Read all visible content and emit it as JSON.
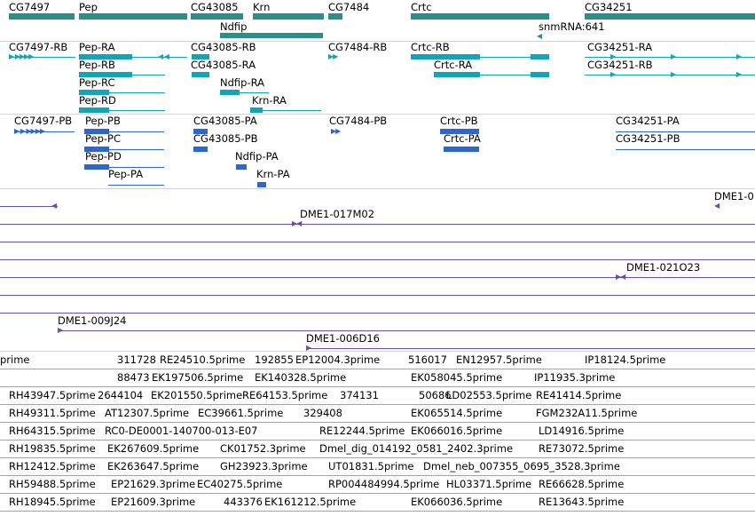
{
  "colors": {
    "gene": "#2a8f8a",
    "transcript_rna": "#14a3b8",
    "transcript_prot": "#2f66cc",
    "bac": "#6a4fa7",
    "est": "#6fb4df",
    "separator": "#d4d4d4"
  },
  "genes": [
    "CG7497",
    "Pep",
    "CG43085",
    "Krn",
    "CG7484",
    "Crtc",
    "CG34251",
    "Ndfip",
    "snmRNA:641"
  ],
  "rna_transcripts": [
    "CG7497-RB",
    "Pep-RA",
    "CG43085-RB",
    "CG7484-RB",
    "Crtc-RB",
    "CG34251-RA",
    "Pep-RB",
    "CG43085-RA",
    "Crtc-RA",
    "CG34251-RB",
    "Pep-RC",
    "Ndfip-RA",
    "Pep-RD",
    "Krn-RA"
  ],
  "protein_transcripts": [
    "CG7497-PB",
    "Pep-PB",
    "CG43085-PA",
    "CG7484-PB",
    "Crtc-PB",
    "CG34251-PA",
    "Pep-PC",
    "CG43085-PB",
    "Crtc-PA",
    "CG34251-PB",
    "Pep-PD",
    "Ndfip-PA",
    "Pep-PA",
    "Krn-PA"
  ],
  "bac_clones": [
    "DME1-0",
    "DME1-017M02",
    "DME1-021O23",
    "DME1-009J24",
    "DME1-006D16"
  ],
  "est_labels": [
    "prime",
    "311728",
    "RE24510.5prime",
    "192855",
    "EP12004.3prime",
    "516017",
    "EN12957.5prime",
    "IP18124.5prime",
    "88473",
    "EK197506.5prime",
    "EK140328.5prime",
    "EK058045.5prime",
    "IP11935.3prime",
    "RH43947.5prime",
    "2644104",
    "EK201550.5prime",
    "RE64153.5prime",
    "374131",
    "50686",
    "LD02553.5prime",
    "RE41414.5prime",
    "RH49311.5prime",
    "AT12307.5prime",
    "EC39661.5prime",
    "329408",
    "EK065514.5prime",
    "FGM232A11.5prime",
    "RH64315.5prime",
    "RC0-DE0001-140700-013-E07",
    "RE12244.5prime",
    "EK066016.5prime",
    "LD14916.5prime",
    "RH19835.5prime",
    "EK267609.5prime",
    "CK01752.3prime",
    "Dmel_dig_014192_0581_2402.3prime",
    "RE73072.5prime",
    "RH12412.5prime",
    "EK263647.5prime",
    "GH23923.3prime",
    "UT01831.5prime",
    "Dmel_neb_007355_0695_3528.3prime",
    "RH59488.5prime",
    "EP21629.3prime",
    "EC40275.5prime",
    "RP004484994.5prime",
    "HL03371.5prime",
    "RE66628.5prime",
    "RH18945.5prime",
    "EP21609.3prime",
    "443376",
    "EK161212.5prime",
    "EK066036.5prime",
    "RE13643.5prime"
  ]
}
